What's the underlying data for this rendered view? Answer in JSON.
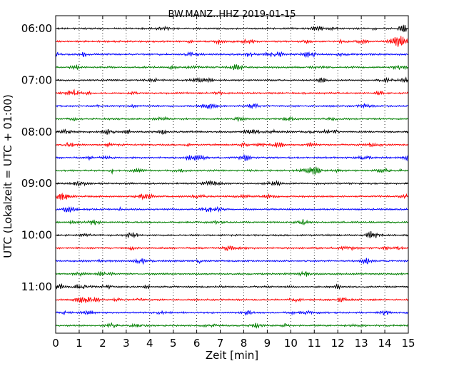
{
  "chart_data": {
    "type": "line",
    "title": "BW.MANZ..HHZ 2019-01-15",
    "xlabel": "Zeit  [min]",
    "ylabel": "UTC (Lokalzeit = UTC + 01:00)",
    "xlim": [
      0,
      15
    ],
    "x_ticks": [
      "0",
      "1",
      "2",
      "3",
      "4",
      "5",
      "6",
      "7",
      "8",
      "9",
      "10",
      "11",
      "12",
      "13",
      "14",
      "15"
    ],
    "y_tick_labels": [
      "06:00",
      "07:00",
      "08:00",
      "09:00",
      "10:00",
      "11:00"
    ],
    "trace_interval_minutes": 15,
    "first_trace_start": "06:00",
    "trace_count": 24,
    "trace_colors": [
      "#000000",
      "#ff0000",
      "#0000ff",
      "#007f00"
    ],
    "grid": "vertical dotted lines at each minute",
    "legend": "none"
  }
}
